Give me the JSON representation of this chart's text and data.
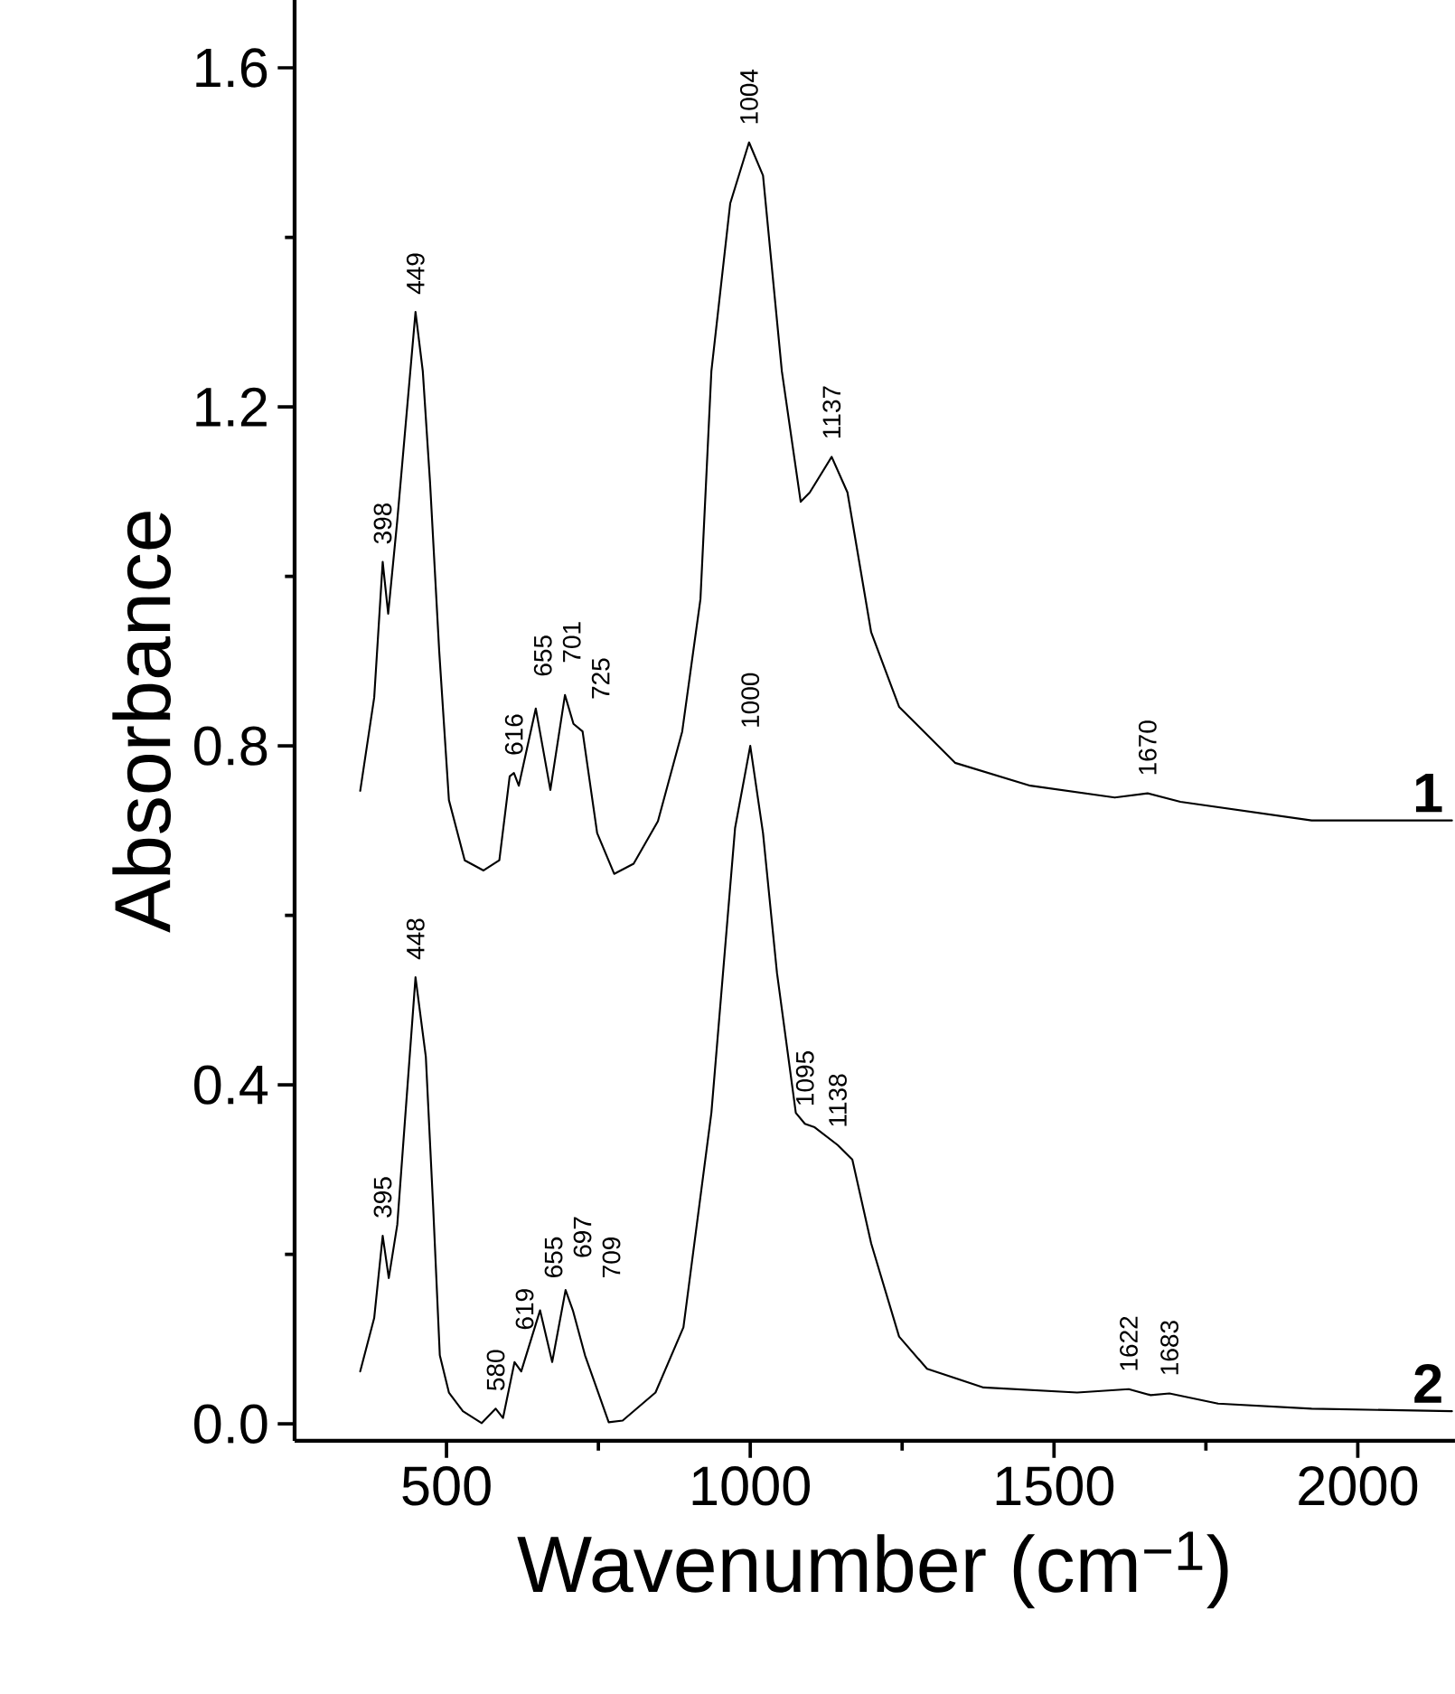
{
  "chart_data": {
    "type": "line",
    "xlabel": "Wavenumber (cm$^{−1}$)",
    "ylabel": "Absorbance",
    "xlim": [
      250,
      2160
    ],
    "ylim": [
      -0.02,
      1.68
    ],
    "xticks": [
      500,
      1000,
      1500,
      2000
    ],
    "yticks": [
      {
        "value": 0,
        "label": "0.0"
      },
      0.4,
      0.8,
      1.2,
      1.6
    ],
    "grid": false,
    "legend": false,
    "marker": "none",
    "line_style": "solid",
    "series": [
      {
        "name": "1",
        "color": "#000000",
        "x": [
          358,
          381,
          395,
          404,
          419,
          449,
          461,
          473,
          488,
          504,
          530,
          561,
          587,
          604,
          611,
          619,
          647,
          671,
          695,
          709,
          724,
          748,
          776,
          808,
          848,
          888,
          918,
          936,
          967,
          998,
          1021,
          1052,
          1083,
          1098,
          1134,
          1160,
          1199,
          1245,
          1337,
          1461,
          1600,
          1654,
          1708,
          1924,
          2155
        ],
        "values": [
          0.747,
          0.857,
          1.017,
          0.956,
          1.066,
          1.312,
          1.242,
          1.11,
          0.912,
          0.736,
          0.665,
          0.653,
          0.665,
          0.764,
          0.768,
          0.753,
          0.844,
          0.748,
          0.86,
          0.826,
          0.817,
          0.697,
          0.649,
          0.661,
          0.711,
          0.817,
          0.973,
          1.242,
          1.44,
          1.512,
          1.473,
          1.242,
          1.088,
          1.099,
          1.141,
          1.099,
          0.934,
          0.846,
          0.78,
          0.753,
          0.739,
          0.744,
          0.734,
          0.712,
          0.712
        ]
      },
      {
        "name": "2",
        "color": "#000000",
        "x": [
          358,
          381,
          395,
          405,
          419,
          449,
          466,
          478,
          489,
          504,
          527,
          558,
          581,
          593,
          612,
          623,
          654,
          674,
          696,
          708,
          728,
          767,
          790,
          844,
          890,
          936,
          975,
          1000,
          1021,
          1044,
          1075,
          1090,
          1106,
          1144,
          1168,
          1199,
          1245,
          1291,
          1384,
          1538,
          1623,
          1659,
          1690,
          1770,
          1924,
          2155
        ],
        "values": [
          0.062,
          0.125,
          0.222,
          0.172,
          0.235,
          0.527,
          0.433,
          0.257,
          0.081,
          0.037,
          0.015,
          0.001,
          0.018,
          0.007,
          0.073,
          0.062,
          0.134,
          0.073,
          0.158,
          0.134,
          0.081,
          0.002,
          0.004,
          0.037,
          0.114,
          0.367,
          0.703,
          0.8,
          0.697,
          0.532,
          0.367,
          0.354,
          0.35,
          0.329,
          0.312,
          0.213,
          0.103,
          0.065,
          0.043,
          0.037,
          0.041,
          0.034,
          0.036,
          0.024,
          0.018,
          0.015
        ]
      }
    ],
    "annotations": [
      {
        "text": "398",
        "x": 395,
        "y": 1.017
      },
      {
        "text": "449",
        "x": 449,
        "y": 1.312
      },
      {
        "text": "616",
        "x": 611,
        "y": 0.768
      },
      {
        "text": "655",
        "x": 647,
        "y": 0.844
      },
      {
        "text": "701",
        "x": 695,
        "y": 0.86
      },
      {
        "text": "725",
        "x": 724,
        "y": 0.817
      },
      {
        "text": "1004",
        "x": 998,
        "y": 1.512
      },
      {
        "text": "1137",
        "x": 1134,
        "y": 1.141
      },
      {
        "text": "1670",
        "x": 1654,
        "y": 0.744
      },
      {
        "text": "395",
        "x": 395,
        "y": 0.222
      },
      {
        "text": "448",
        "x": 449,
        "y": 0.527
      },
      {
        "text": "580",
        "x": 581,
        "y": 0.018
      },
      {
        "text": "619",
        "x": 612,
        "y": 0.073
      },
      {
        "text": "655",
        "x": 654,
        "y": 0.134
      },
      {
        "text": "697",
        "x": 696,
        "y": 0.158
      },
      {
        "text": "709",
        "x": 708,
        "y": 0.134
      },
      {
        "text": "1000",
        "x": 1000,
        "y": 0.8
      },
      {
        "text": "1095",
        "x": 1090,
        "y": 0.354
      },
      {
        "text": "1138",
        "x": 1144,
        "y": 0.329
      },
      {
        "text": "1622",
        "x": 1623,
        "y": 0.041
      },
      {
        "text": "1683",
        "x": 1690,
        "y": 0.036
      }
    ]
  }
}
